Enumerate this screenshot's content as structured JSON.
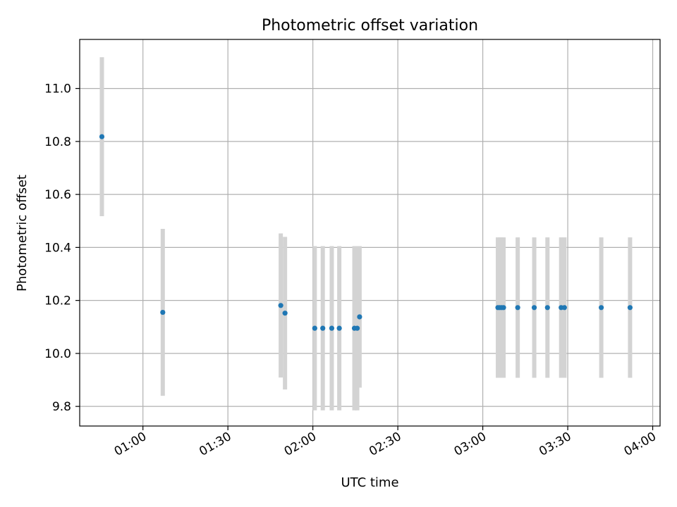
{
  "chart_data": {
    "type": "scatter",
    "title": "Photometric offset variation",
    "xlabel": "UTC time",
    "ylabel": "Photometric offset",
    "x_ticks": [
      "01:00",
      "01:30",
      "02:00",
      "02:30",
      "03:00",
      "03:30",
      "04:00"
    ],
    "y_ticks": [
      "9.8",
      "10.0",
      "10.2",
      "10.4",
      "10.6",
      "10.8",
      "11.0"
    ],
    "xlim": [
      "00:37:40",
      "04:02:36"
    ],
    "ylim": [
      9.726,
      11.185
    ],
    "grid": true,
    "legend": "none",
    "colors": {
      "point": "#1f77b4",
      "errorbar": "#d3d3d3",
      "grid": "#b0b0b0",
      "axes": "#000000"
    },
    "points": [
      {
        "x": "00:45:30",
        "y": 10.818,
        "yerr": 0.3
      },
      {
        "x": "01:07:00",
        "y": 10.155,
        "yerr": 0.315
      },
      {
        "x": "01:48:40",
        "y": 10.181,
        "yerr": 0.272
      },
      {
        "x": "01:50:10",
        "y": 10.152,
        "yerr": 0.288
      },
      {
        "x": "02:00:40",
        "y": 10.095,
        "yerr": 0.31
      },
      {
        "x": "02:03:30",
        "y": 10.095,
        "yerr": 0.31
      },
      {
        "x": "02:06:40",
        "y": 10.095,
        "yerr": 0.31
      },
      {
        "x": "02:09:20",
        "y": 10.095,
        "yerr": 0.31
      },
      {
        "x": "02:14:40",
        "y": 10.095,
        "yerr": 0.31
      },
      {
        "x": "02:15:40",
        "y": 10.095,
        "yerr": 0.31
      },
      {
        "x": "02:16:30",
        "y": 10.138,
        "yerr": 0.267
      },
      {
        "x": "03:05:20",
        "y": 10.173,
        "yerr": 0.265
      },
      {
        "x": "03:06:00",
        "y": 10.173,
        "yerr": 0.265
      },
      {
        "x": "03:06:40",
        "y": 10.173,
        "yerr": 0.265
      },
      {
        "x": "03:07:20",
        "y": 10.173,
        "yerr": 0.265
      },
      {
        "x": "03:12:20",
        "y": 10.173,
        "yerr": 0.265
      },
      {
        "x": "03:18:10",
        "y": 10.173,
        "yerr": 0.265
      },
      {
        "x": "03:22:50",
        "y": 10.173,
        "yerr": 0.265
      },
      {
        "x": "03:27:40",
        "y": 10.173,
        "yerr": 0.265
      },
      {
        "x": "03:28:50",
        "y": 10.173,
        "yerr": 0.265
      },
      {
        "x": "03:41:50",
        "y": 10.173,
        "yerr": 0.265
      },
      {
        "x": "03:52:00",
        "y": 10.173,
        "yerr": 0.265
      }
    ]
  }
}
